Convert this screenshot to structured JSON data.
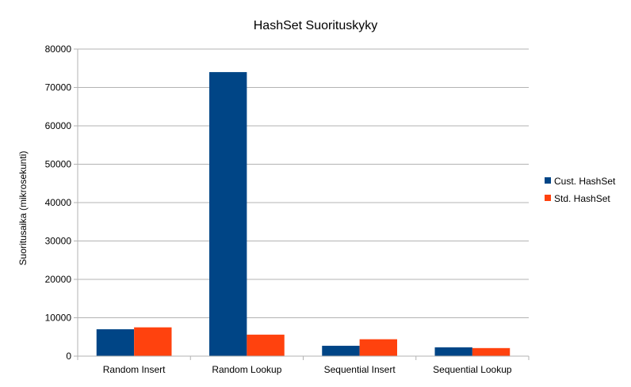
{
  "chart_data": {
    "type": "bar",
    "title": "HashSet Suorituskyky",
    "xlabel": "",
    "ylabel": "Suoritusaika (mikrosekunti)",
    "categories": [
      "Random Insert",
      "Random Lookup",
      "Sequential Insert",
      "Sequential Lookup"
    ],
    "series": [
      {
        "name": "Cust. HashSet",
        "color": "#004586",
        "values": [
          7000,
          74000,
          2700,
          2300
        ]
      },
      {
        "name": "Std. HashSet",
        "color": "#ff420e",
        "values": [
          7500,
          5600,
          4400,
          2100
        ]
      }
    ],
    "ylim": [
      0,
      80000
    ],
    "yticks": [
      "0",
      "10000",
      "20000",
      "30000",
      "40000",
      "50000",
      "60000",
      "70000",
      "80000"
    ],
    "grid": true,
    "legend": "right"
  }
}
